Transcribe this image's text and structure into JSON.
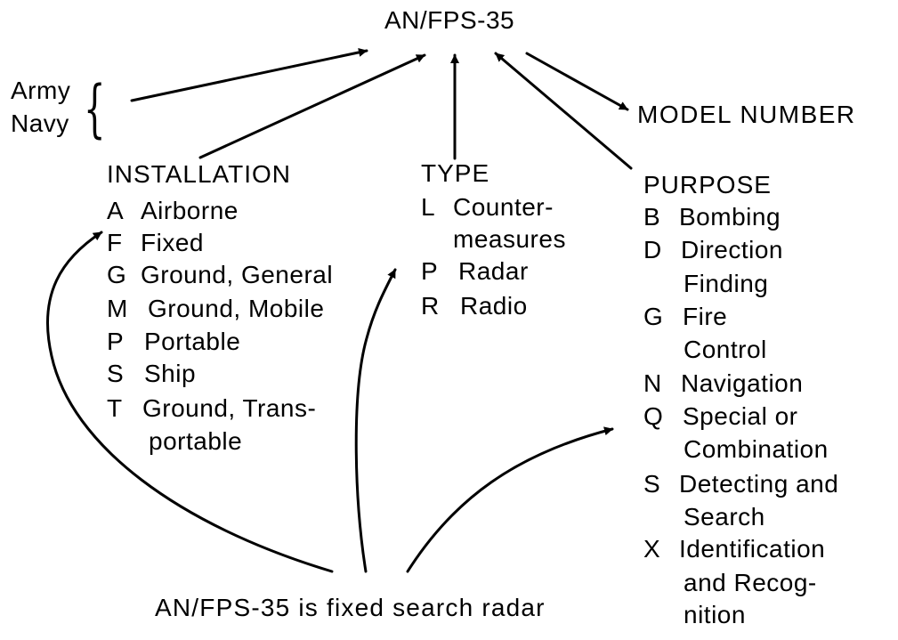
{
  "title": "AN/FPS-35",
  "service": {
    "army": "Army",
    "navy": "Navy",
    "brace": "{"
  },
  "model_number": "MODEL NUMBER",
  "installation": {
    "heading": "INSTALLATION",
    "items": [
      {
        "code": "A",
        "label": "Airborne"
      },
      {
        "code": "F",
        "label": "Fixed"
      },
      {
        "code": "G",
        "label": "Ground, General"
      },
      {
        "code": "M",
        "label": "Ground, Mobile"
      },
      {
        "code": "P",
        "label": "Portable"
      },
      {
        "code": "S",
        "label": "Ship"
      },
      {
        "code": "T",
        "label": "Ground, Trans-",
        "cont": "portable"
      }
    ]
  },
  "type": {
    "heading": "TYPE",
    "items": [
      {
        "code": "L",
        "label": "Counter-",
        "cont": "measures"
      },
      {
        "code": "P",
        "label": "Radar"
      },
      {
        "code": "R",
        "label": "Radio"
      }
    ]
  },
  "purpose": {
    "heading": "PURPOSE",
    "items": [
      {
        "code": "B",
        "label": "Bombing"
      },
      {
        "code": "D",
        "label": "Direction",
        "cont": "Finding"
      },
      {
        "code": "G",
        "label": "Fire",
        "cont": "Control"
      },
      {
        "code": "N",
        "label": "Navigation"
      },
      {
        "code": "Q",
        "label": "Special or",
        "cont": "Combination"
      },
      {
        "code": "S",
        "label": "Detecting and",
        "cont": "Search"
      },
      {
        "code": "X",
        "label": "Identification",
        "cont": "and Recog-",
        "cont2": "nition"
      }
    ]
  },
  "example": "AN/FPS-35 is fixed search radar",
  "colors": {
    "ink": "#000000",
    "background": "#ffffff"
  }
}
